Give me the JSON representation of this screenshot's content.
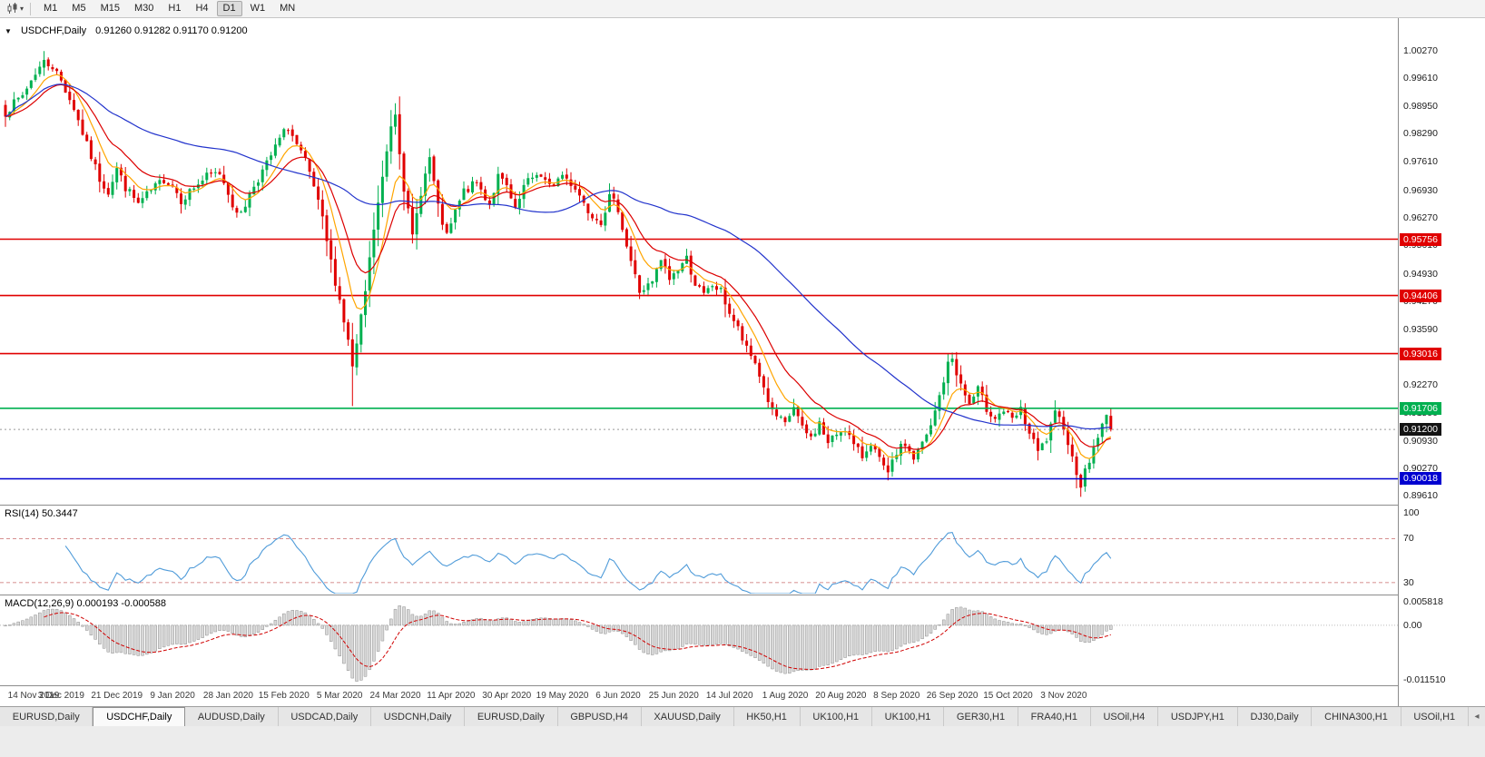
{
  "toolbar": {
    "timeframes": [
      "M1",
      "M5",
      "M15",
      "M30",
      "H1",
      "H4",
      "D1",
      "W1",
      "MN"
    ],
    "active_timeframe": "D1"
  },
  "chart": {
    "header": {
      "collapse_icon": "▼",
      "symbol": "USDCHF,Daily",
      "ohlc": "0.91260 0.91282 0.91170 0.91200"
    }
  },
  "rsi": {
    "label": "RSI(14) 50.3447"
  },
  "macd": {
    "label": "MACD(12,26,9) 0.000193 -0.000588"
  },
  "tabs": [
    "EURUSD,Daily",
    "USDCHF,Daily",
    "AUDUSD,Daily",
    "USDCAD,Daily",
    "USDCNH,Daily",
    "EURUSD,Daily",
    "GBPUSD,H4",
    "XAUUSD,Daily",
    "HK50,H1",
    "UK100,H1",
    "UK100,H1",
    "GER30,H1",
    "FRA40,H1",
    "USOil,H4",
    "USDJPY,H1",
    "DJ30,Daily",
    "CHINA300,H1",
    "USOil,H1"
  ],
  "tabs_active_index": 1,
  "tab_scroll_icon": "◂",
  "chart_data": {
    "type": "candlestick",
    "symbol": "USDCHF",
    "timeframe": "Daily",
    "num_candles": 259,
    "seed": 7,
    "noise": 0.0022,
    "last_close": 0.912,
    "price_scale": {
      "top": 1.0105,
      "bottom": 0.8942
    },
    "axis_ticks": [
      "1.00270",
      "0.99610",
      "0.98950",
      "0.98290",
      "0.97610",
      "0.96930",
      "0.96270",
      "0.95610",
      "0.94930",
      "0.94270",
      "0.93590",
      "0.92930",
      "0.92270",
      "0.91590",
      "0.90930",
      "0.90270",
      "0.89610"
    ],
    "hlines": [
      {
        "price": 0.95756,
        "label": "0.95756",
        "color": "#E00000"
      },
      {
        "price": 0.94406,
        "label": "0.94406",
        "color": "#E00000"
      },
      {
        "price": 0.93016,
        "label": "0.93016",
        "color": "#E00000"
      },
      {
        "price": 0.91706,
        "label": "0.91706",
        "color": "#00B050"
      },
      {
        "price": 0.90018,
        "label": "0.90018",
        "color": "#0000D0"
      }
    ],
    "bid": {
      "price": 0.912,
      "label": "0.91200"
    },
    "colors": {
      "up": "#00B050",
      "down": "#E00000"
    },
    "ma": [
      {
        "type": "ema",
        "period": 8,
        "color": "#FFA500"
      },
      {
        "type": "ema",
        "period": 16,
        "color": "#DC0000"
      },
      {
        "type": "sma",
        "period": 55,
        "color": "#2233CC"
      }
    ],
    "rsi": {
      "period": 14,
      "color": "#4F9BD9",
      "levels": [
        70,
        30
      ],
      "scale": [
        20,
        100
      ],
      "axis_labels": [
        "100",
        "70",
        "30"
      ]
    },
    "macd": {
      "fast": 12,
      "slow": 26,
      "signal": 9,
      "hist_fill": "#D8D8D8",
      "hist_stroke": "#909090",
      "signal_color": "#D00000",
      "axis_labels": [
        "0.005818",
        "0.00",
        "-0.011510"
      ]
    },
    "candles_per_label": 13,
    "date_labels": [
      "14 Nov 2019",
      "3 Dec 2019",
      "21 Dec 2019",
      "9 Jan 2020",
      "28 Jan 2020",
      "15 Feb 2020",
      "5 Mar 2020",
      "24 Mar 2020",
      "11 Apr 2020",
      "30 Apr 2020",
      "19 May 2020",
      "6 Jun 2020",
      "25 Jun 2020",
      "14 Jul 2020",
      "1 Aug 2020",
      "20 Aug 2020",
      "8 Sep 2020",
      "26 Sep 2020",
      "15 Oct 2020",
      "3 Nov 2020"
    ],
    "close_anchors": [
      [
        0,
        0.988
      ],
      [
        4,
        0.992
      ],
      [
        7,
        0.9975
      ],
      [
        9,
        1.0
      ],
      [
        11,
        0.999
      ],
      [
        13,
        0.9955
      ],
      [
        16,
        0.989
      ],
      [
        19,
        0.98
      ],
      [
        22,
        0.972
      ],
      [
        24,
        0.969
      ],
      [
        26,
        0.9745
      ],
      [
        28,
        0.97
      ],
      [
        31,
        0.966
      ],
      [
        34,
        0.969
      ],
      [
        37,
        0.972
      ],
      [
        39,
        0.9705
      ],
      [
        41,
        0.967
      ],
      [
        44,
        0.97
      ],
      [
        47,
        0.9725
      ],
      [
        50,
        0.9735
      ],
      [
        52,
        0.969
      ],
      [
        54,
        0.963
      ],
      [
        56,
        0.966
      ],
      [
        58,
        0.9705
      ],
      [
        61,
        0.9755
      ],
      [
        64,
        0.9815
      ],
      [
        66,
        0.9845
      ],
      [
        68,
        0.98
      ],
      [
        70,
        0.976
      ],
      [
        72,
        0.97
      ],
      [
        74,
        0.962
      ],
      [
        76,
        0.952
      ],
      [
        78,
        0.943
      ],
      [
        80,
        0.933
      ],
      [
        81,
        0.927
      ],
      [
        82,
        0.932
      ],
      [
        84,
        0.945
      ],
      [
        86,
        0.96
      ],
      [
        88,
        0.972
      ],
      [
        90,
        0.985
      ],
      [
        91,
        0.988
      ],
      [
        92,
        0.979
      ],
      [
        93,
        0.97
      ],
      [
        95,
        0.958
      ],
      [
        97,
        0.969
      ],
      [
        99,
        0.977
      ],
      [
        101,
        0.965
      ],
      [
        103,
        0.958
      ],
      [
        105,
        0.964
      ],
      [
        107,
        0.969
      ],
      [
        110,
        0.971
      ],
      [
        113,
        0.966
      ],
      [
        115,
        0.9725
      ],
      [
        117,
        0.97
      ],
      [
        119,
        0.964
      ],
      [
        121,
        0.97
      ],
      [
        124,
        0.9735
      ],
      [
        127,
        0.97
      ],
      [
        130,
        0.973
      ],
      [
        133,
        0.97
      ],
      [
        136,
        0.9645
      ],
      [
        139,
        0.962
      ],
      [
        141,
        0.9675
      ],
      [
        143,
        0.965
      ],
      [
        145,
        0.956
      ],
      [
        148,
        0.945
      ],
      [
        151,
        0.947
      ],
      [
        153,
        0.9525
      ],
      [
        155,
        0.948
      ],
      [
        157,
        0.9505
      ],
      [
        159,
        0.953
      ],
      [
        161,
        0.947
      ],
      [
        163,
        0.944
      ],
      [
        165,
        0.9465
      ],
      [
        167,
        0.945
      ],
      [
        169,
        0.94
      ],
      [
        171,
        0.936
      ],
      [
        173,
        0.931
      ],
      [
        175,
        0.928
      ],
      [
        177,
        0.922
      ],
      [
        179,
        0.916
      ],
      [
        182,
        0.913
      ],
      [
        184,
        0.9175
      ],
      [
        186,
        0.912
      ],
      [
        188,
        0.91
      ],
      [
        190,
        0.9135
      ],
      [
        192,
        0.9085
      ],
      [
        194,
        0.911
      ],
      [
        196,
        0.9125
      ],
      [
        198,
        0.908
      ],
      [
        200,
        0.9055
      ],
      [
        202,
        0.909
      ],
      [
        204,
        0.9045
      ],
      [
        206,
        0.901
      ],
      [
        208,
        0.9065
      ],
      [
        210,
        0.9085
      ],
      [
        212,
        0.905
      ],
      [
        214,
        0.9085
      ],
      [
        216,
        0.9125
      ],
      [
        218,
        0.92
      ],
      [
        220,
        0.9275
      ],
      [
        221,
        0.929
      ],
      [
        223,
        0.9225
      ],
      [
        225,
        0.918
      ],
      [
        227,
        0.9215
      ],
      [
        229,
        0.917
      ],
      [
        231,
        0.915
      ],
      [
        233,
        0.9165
      ],
      [
        235,
        0.914
      ],
      [
        237,
        0.9165
      ],
      [
        239,
        0.911
      ],
      [
        241,
        0.9065
      ],
      [
        243,
        0.9095
      ],
      [
        245,
        0.9155
      ],
      [
        247,
        0.913
      ],
      [
        249,
        0.905
      ],
      [
        251,
        0.899
      ],
      [
        253,
        0.9045
      ],
      [
        255,
        0.9105
      ],
      [
        257,
        0.915
      ],
      [
        258,
        0.912
      ]
    ],
    "wick_overrides": [
      {
        "i": 9,
        "high": 1.0026
      },
      {
        "i": 81,
        "low": 0.9176
      },
      {
        "i": 91,
        "high": 0.9901
      },
      {
        "i": 206,
        "low": 0.8998
      },
      {
        "i": 221,
        "high": 0.9297
      },
      {
        "i": 251,
        "low": 0.8963
      }
    ]
  }
}
